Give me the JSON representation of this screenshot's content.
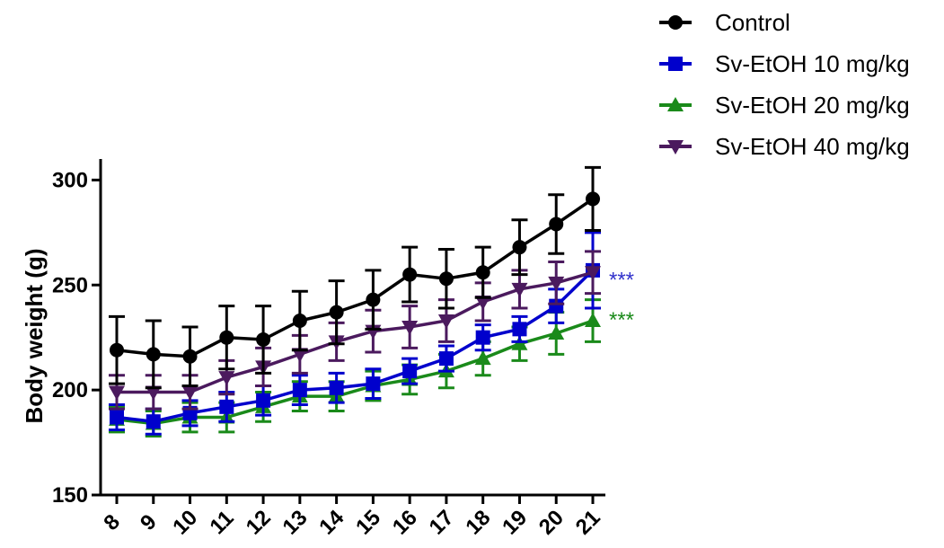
{
  "chart_data": {
    "type": "line",
    "title": "",
    "xlabel": "",
    "ylabel": "Body weight (g)",
    "x": [
      8,
      9,
      10,
      11,
      12,
      13,
      14,
      15,
      16,
      17,
      18,
      19,
      20,
      21
    ],
    "ylim": [
      150,
      310
    ],
    "yticks": [
      150,
      200,
      250,
      300
    ],
    "error_bars": true,
    "legend_position": "top-right",
    "series": [
      {
        "name": "Control",
        "color": "#000000",
        "marker": "circle",
        "values": [
          219,
          217,
          216,
          225,
          224,
          233,
          237,
          243,
          255,
          253,
          256,
          268,
          279,
          291
        ],
        "errors": [
          16,
          16,
          14,
          15,
          16,
          14,
          15,
          14,
          13,
          14,
          12,
          13,
          14,
          15
        ]
      },
      {
        "name": "Sv-EtOH 10 mg/kg",
        "color": "#0000cc",
        "marker": "square",
        "values": [
          187,
          185,
          189,
          192,
          195,
          200,
          201,
          203,
          209,
          215,
          225,
          229,
          240,
          257
        ],
        "errors": [
          6,
          6,
          6,
          7,
          7,
          7,
          7,
          7,
          6,
          6,
          6,
          6,
          8,
          18
        ]
      },
      {
        "name": "Sv-EtOH 20 mg/kg",
        "color": "#1a8a1a",
        "marker": "triangle-up",
        "values": [
          186,
          184,
          187,
          187,
          192,
          197,
          197,
          202,
          205,
          209,
          215,
          222,
          227,
          233
        ],
        "errors": [
          6,
          6,
          7,
          7,
          7,
          7,
          7,
          7,
          7,
          8,
          8,
          8,
          10,
          10
        ]
      },
      {
        "name": "Sv-EtOH 40 mg/kg",
        "color": "#4b1a5e",
        "marker": "triangle-down",
        "values": [
          199,
          199,
          199,
          206,
          211,
          217,
          223,
          228,
          230,
          233,
          242,
          248,
          251,
          256
        ],
        "errors": [
          8,
          8,
          8,
          8,
          9,
          9,
          9,
          10,
          10,
          10,
          9,
          9,
          10,
          10
        ]
      }
    ],
    "annotations": [
      {
        "text": "***",
        "series": "Sv-EtOH 10 mg/kg",
        "x": 21,
        "y": 255,
        "color": "#3333cc"
      },
      {
        "text": "***",
        "series": "Sv-EtOH 20 mg/kg",
        "x": 21,
        "y": 236,
        "color": "#1a8a1a"
      }
    ]
  }
}
